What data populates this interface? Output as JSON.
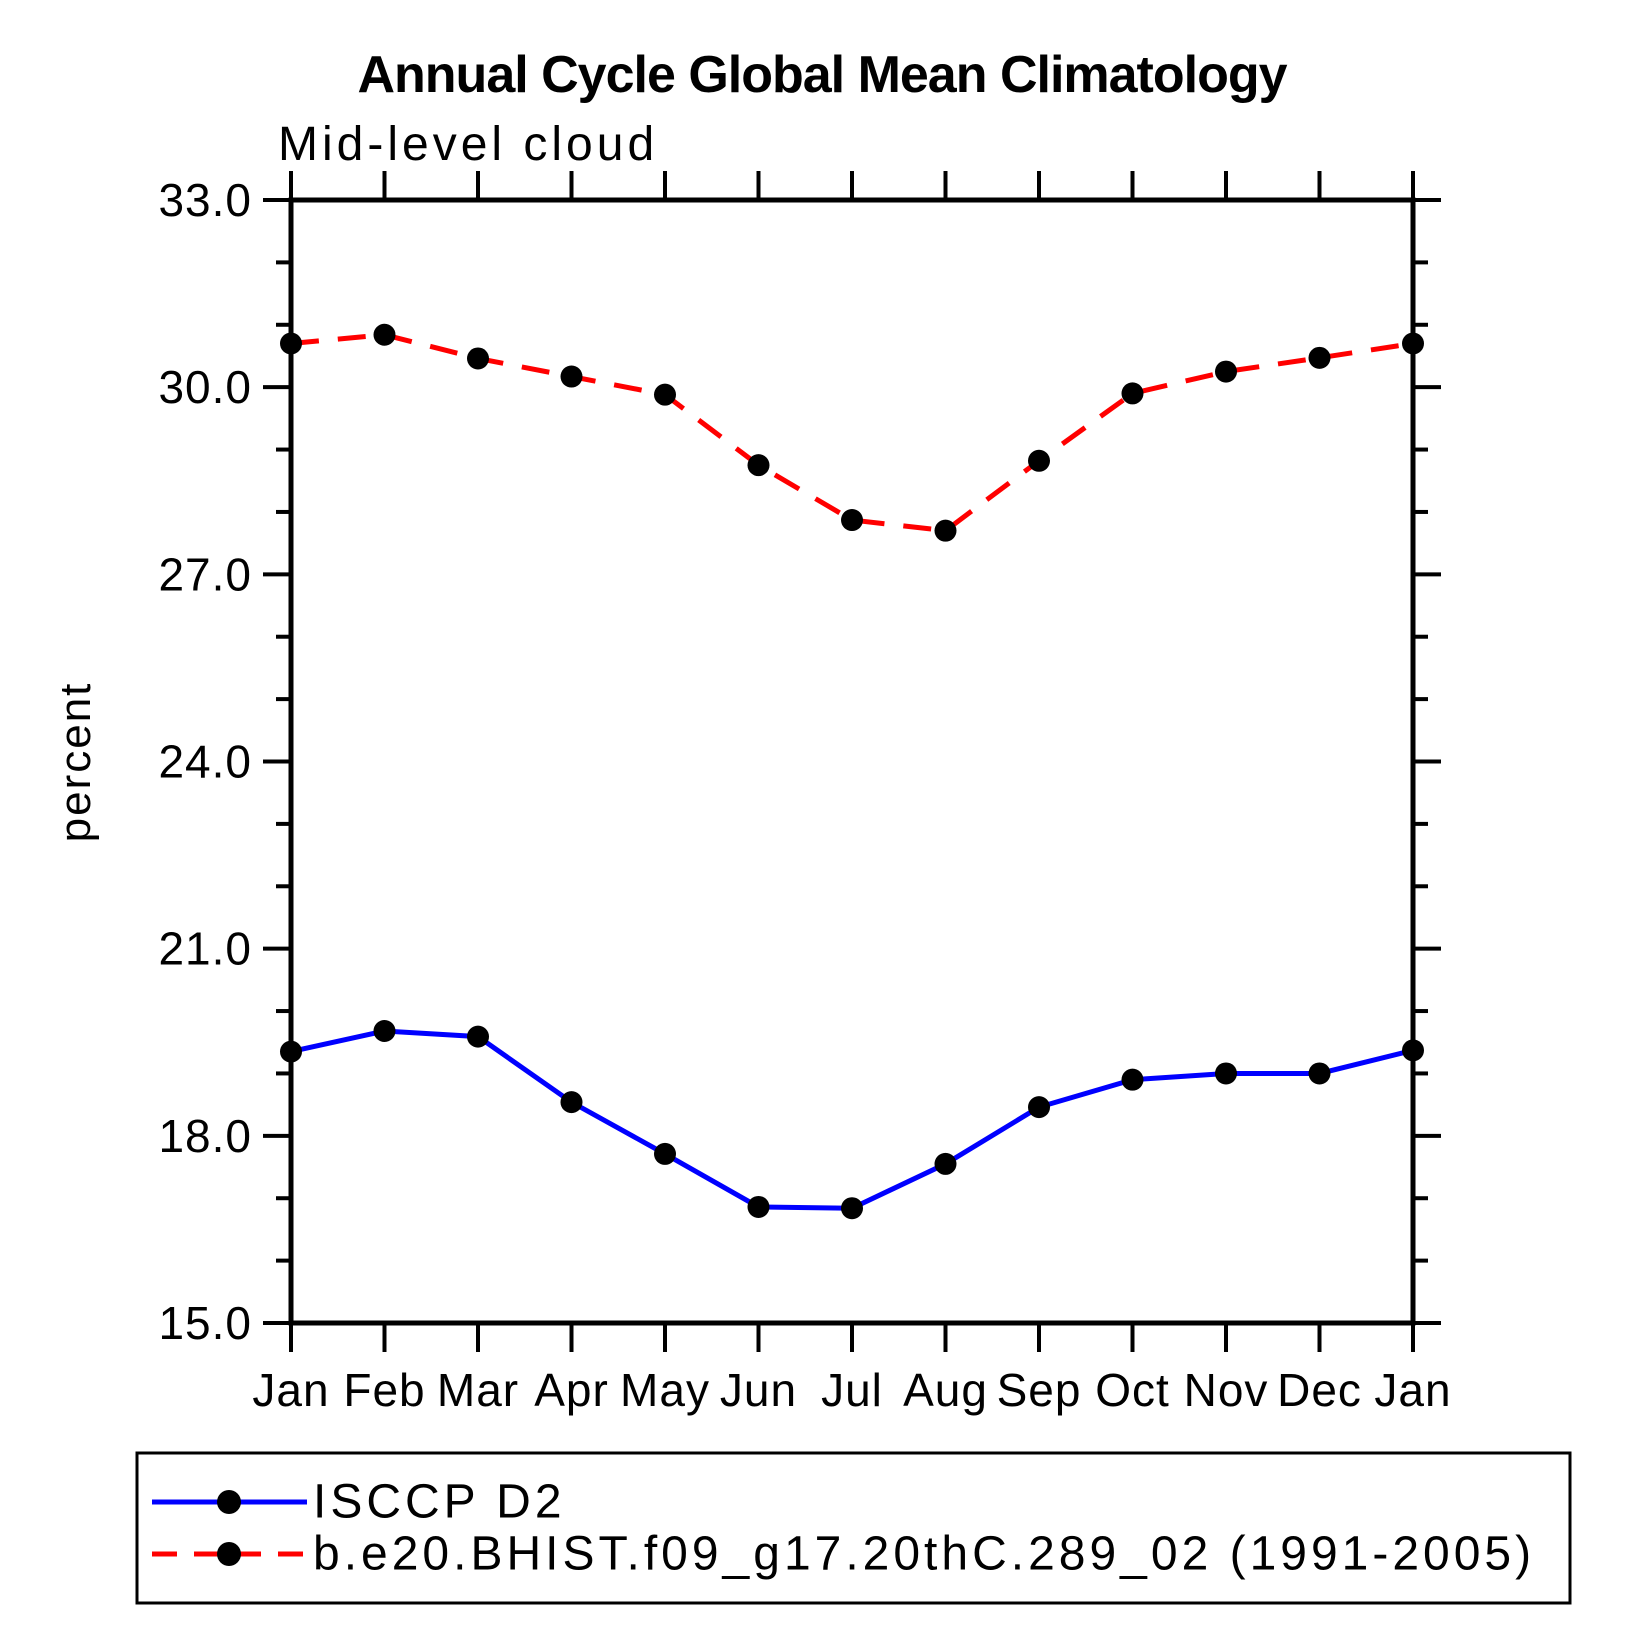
{
  "title": "Annual Cycle Global Mean Climatology",
  "subtitle": "Mid-level cloud",
  "ylabel": "percent",
  "colors": {
    "background": "#ffffff",
    "axis": "#000000",
    "marker": "#000000",
    "series_blue": "#0000ff",
    "series_red": "#ff0000"
  },
  "chart_data": {
    "type": "line",
    "x_categories": [
      "Jan",
      "Feb",
      "Mar",
      "Apr",
      "May",
      "Jun",
      "Jul",
      "Aug",
      "Sep",
      "Oct",
      "Nov",
      "Dec",
      "Jan"
    ],
    "xlabel": "",
    "ylabel": "percent",
    "ylim": [
      15.0,
      33.0
    ],
    "y_major_ticks": [
      33.0,
      30.0,
      27.0,
      24.0,
      21.0,
      18.0,
      15.0
    ],
    "y_minor_step": 1.0,
    "grid": false,
    "legend_position": "bottom",
    "series": [
      {
        "name": "ISCCP D2",
        "color": "#0000ff",
        "line_style": "solid",
        "marker": "circle",
        "marker_color": "#000000",
        "values": [
          19.35,
          19.68,
          19.59,
          18.54,
          17.71,
          16.86,
          16.84,
          17.55,
          18.46,
          18.9,
          19.0,
          19.0,
          19.37
        ]
      },
      {
        "name": "b.e20.BHIST.f09_g17.20thC.289_02 (1991-2005)",
        "color": "#ff0000",
        "line_style": "dashed",
        "marker": "circle",
        "marker_color": "#000000",
        "values": [
          30.7,
          30.84,
          30.46,
          30.17,
          29.88,
          28.75,
          27.87,
          27.7,
          28.82,
          29.9,
          30.25,
          30.47,
          30.7
        ]
      }
    ]
  }
}
